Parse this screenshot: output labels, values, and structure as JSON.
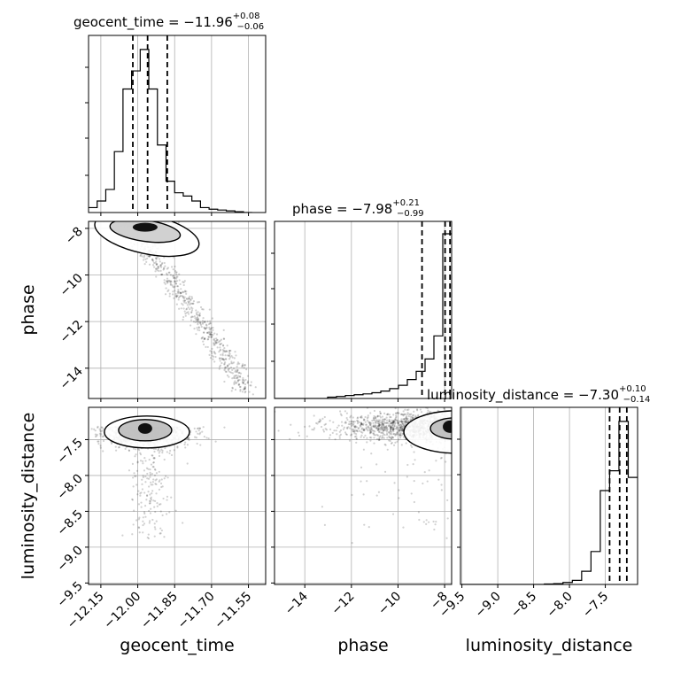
{
  "figure": {
    "titles": {
      "geocent_time": {
        "prefix": "geocent_time = −11.96",
        "upper": "+0.08",
        "lower": "−0.06"
      },
      "phase": {
        "prefix": "phase = −7.98",
        "upper": "+0.21",
        "lower": "−0.99"
      },
      "luminosity_distance": {
        "prefix": "luminosity_distance = −7.30",
        "upper": "+0.10",
        "lower": "−0.14"
      }
    },
    "axis_labels": {
      "geocent_time": "geocent_time",
      "phase": "phase",
      "luminosity_distance": "luminosity_distance"
    },
    "colors": {
      "line": "#000000",
      "grid": "#b0b0b0",
      "frame": "#000000"
    }
  },
  "chart_data": {
    "type": "corner",
    "parameters": [
      "geocent_time",
      "phase",
      "luminosity_distance"
    ],
    "ranges": {
      "geocent_time": [
        -12.2,
        -11.48
      ],
      "phase": [
        -15.3,
        -7.7
      ],
      "luminosity_distance": [
        -9.52,
        -7.05
      ]
    },
    "ticks": {
      "geocent_time": {
        "values": [
          -12.15,
          -12.0,
          -11.85,
          -11.7,
          -11.55
        ],
        "labels": [
          "−12.15",
          "−12.00",
          "−11.85",
          "−11.70",
          "−11.55"
        ]
      },
      "phase": {
        "values": [
          -14,
          -12,
          -10,
          -8
        ],
        "labels": [
          "−14",
          "−12",
          "−10",
          "−8"
        ]
      },
      "luminosity_distance": {
        "values": [
          -9.5,
          -9.0,
          -8.5,
          -8.0,
          -7.5
        ],
        "labels": [
          "−9.5",
          "−9.0",
          "−8.5",
          "−8.0",
          "−7.5"
        ]
      }
    },
    "quantiles": {
      "geocent_time": [
        -12.02,
        -11.96,
        -11.88
      ],
      "phase": [
        -8.97,
        -7.98,
        -7.77
      ],
      "luminosity_distance": [
        -7.44,
        -7.3,
        -7.2
      ]
    },
    "histograms": {
      "geocent_time": {
        "edges": [
          -12.2,
          -12.165,
          -12.13,
          -12.095,
          -12.06,
          -12.025,
          -11.99,
          -11.955,
          -11.92,
          -11.885,
          -11.85,
          -11.815,
          -11.78,
          -11.745,
          -11.71,
          -11.675,
          -11.64,
          -11.605,
          -11.57,
          -11.535
        ],
        "counts": [
          0.03,
          0.07,
          0.14,
          0.37,
          0.75,
          0.86,
          0.99,
          0.75,
          0.41,
          0.19,
          0.12,
          0.1,
          0.07,
          0.03,
          0.02,
          0.015,
          0.01,
          0.005,
          0.0
        ]
      },
      "phase": {
        "edges": [
          -15.3,
          -14.92,
          -14.54,
          -14.16,
          -13.78,
          -13.4,
          -13.02,
          -12.64,
          -12.26,
          -11.88,
          -11.5,
          -11.12,
          -10.74,
          -10.36,
          -9.98,
          -9.6,
          -9.22,
          -8.84,
          -8.46,
          -8.08,
          -7.7
        ],
        "counts": [
          0.0,
          0.0,
          0.0,
          0.0,
          0.0,
          0.0,
          0.008,
          0.012,
          0.018,
          0.023,
          0.028,
          0.035,
          0.045,
          0.06,
          0.08,
          0.115,
          0.165,
          0.24,
          0.38,
          1.0
        ]
      },
      "luminosity_distance": {
        "edges": [
          -9.52,
          -9.39,
          -9.26,
          -9.13,
          -9.0,
          -8.87,
          -8.74,
          -8.61,
          -8.48,
          -8.35,
          -8.22,
          -8.09,
          -7.96,
          -7.83,
          -7.7,
          -7.57,
          -7.44,
          -7.31,
          -7.18,
          -7.05
        ],
        "counts": [
          0.0,
          0.0,
          0.0,
          0.0,
          0.0,
          0.0,
          0.0,
          0.0,
          0.0,
          0.003,
          0.005,
          0.012,
          0.025,
          0.08,
          0.2,
          0.57,
          0.69,
          0.99,
          0.65
        ]
      }
    },
    "contour_peaks": {
      "phase_vs_geocent_time": {
        "x": -11.97,
        "y": -7.95
      },
      "luminosity_distance_vs_geocent_time": {
        "x": -11.97,
        "y": -7.32
      },
      "luminosity_distance_vs_phase": {
        "x": -7.85,
        "y": -7.32
      }
    },
    "grid": true
  }
}
